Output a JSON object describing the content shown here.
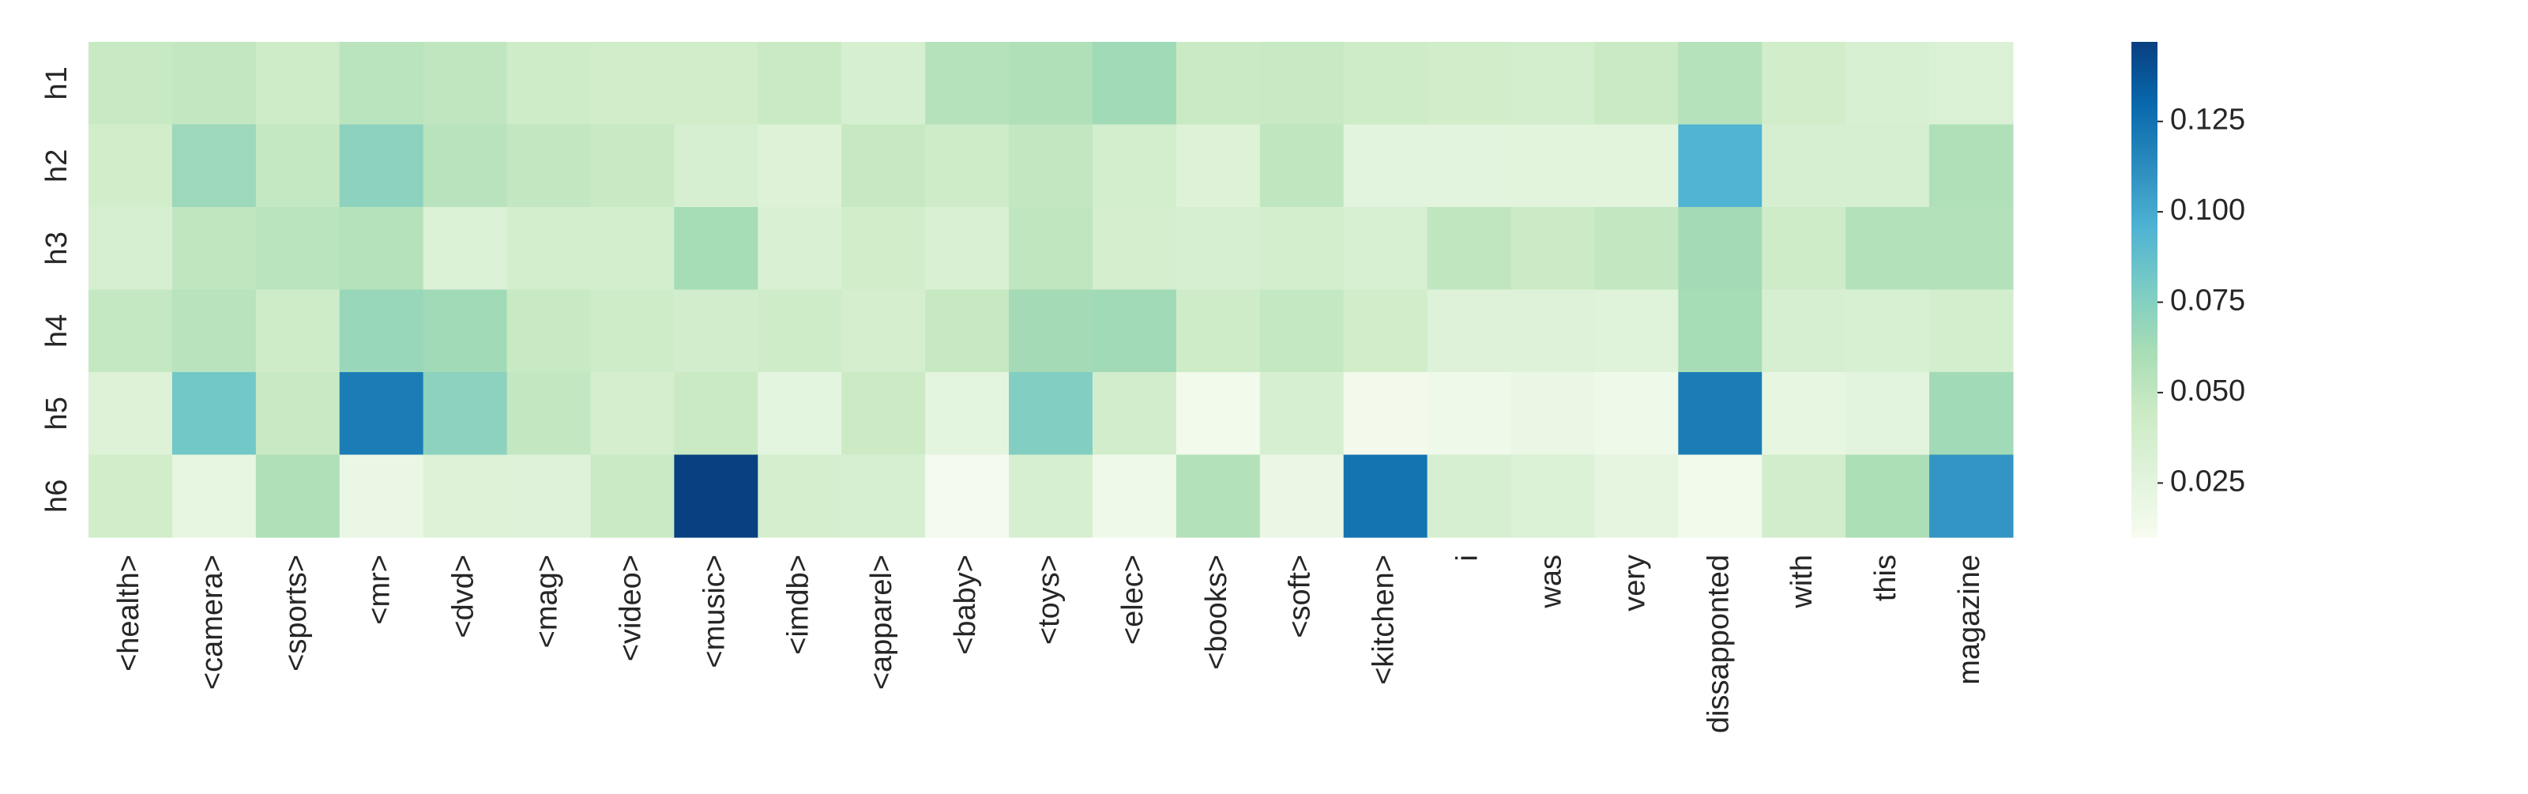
{
  "chart_data": {
    "type": "heatmap",
    "title": "",
    "xlabel": "",
    "ylabel": "",
    "x": [
      "<health>",
      "<camera>",
      "<sports>",
      "<mr>",
      "<dvd>",
      "<mag>",
      "<video>",
      "<music>",
      "<imdb>",
      "<apparel>",
      "<baby>",
      "<toys>",
      "<elec>",
      "<books>",
      "<soft>",
      "<kitchen>",
      "i",
      "was",
      "very",
      "dissapponted",
      "with",
      "this",
      "magazine"
    ],
    "y": [
      "h1",
      "h2",
      "h3",
      "h4",
      "h5",
      "h6"
    ],
    "values": [
      [
        0.046,
        0.049,
        0.042,
        0.053,
        0.05,
        0.042,
        0.04,
        0.04,
        0.045,
        0.036,
        0.055,
        0.058,
        0.064,
        0.045,
        0.046,
        0.042,
        0.04,
        0.038,
        0.045,
        0.055,
        0.04,
        0.034,
        0.032
      ],
      [
        0.04,
        0.066,
        0.048,
        0.072,
        0.054,
        0.049,
        0.046,
        0.036,
        0.03,
        0.047,
        0.043,
        0.049,
        0.038,
        0.03,
        0.05,
        0.025,
        0.025,
        0.026,
        0.026,
        0.095,
        0.035,
        0.036,
        0.058
      ],
      [
        0.036,
        0.05,
        0.053,
        0.055,
        0.031,
        0.038,
        0.038,
        0.062,
        0.033,
        0.04,
        0.033,
        0.05,
        0.037,
        0.035,
        0.038,
        0.034,
        0.05,
        0.044,
        0.049,
        0.063,
        0.042,
        0.056,
        0.056
      ],
      [
        0.048,
        0.054,
        0.042,
        0.067,
        0.064,
        0.046,
        0.043,
        0.039,
        0.042,
        0.037,
        0.047,
        0.063,
        0.064,
        0.043,
        0.048,
        0.04,
        0.029,
        0.029,
        0.028,
        0.062,
        0.036,
        0.034,
        0.038
      ],
      [
        0.03,
        0.082,
        0.046,
        0.12,
        0.072,
        0.049,
        0.037,
        0.045,
        0.024,
        0.044,
        0.024,
        0.076,
        0.039,
        0.014,
        0.035,
        0.013,
        0.016,
        0.019,
        0.016,
        0.12,
        0.022,
        0.025,
        0.064
      ],
      [
        0.04,
        0.022,
        0.058,
        0.02,
        0.03,
        0.029,
        0.045,
        0.147,
        0.037,
        0.036,
        0.012,
        0.036,
        0.016,
        0.056,
        0.019,
        0.124,
        0.036,
        0.032,
        0.023,
        0.014,
        0.039,
        0.059,
        0.109
      ]
    ],
    "colorbar": {
      "min": 0.01,
      "max": 0.147,
      "ticks": [
        0.025,
        0.05,
        0.075,
        0.1,
        0.125
      ],
      "tick_labels": [
        "0.025",
        "0.050",
        "0.075",
        "0.100",
        "0.125"
      ]
    },
    "colormap": "GnBu",
    "grid": false,
    "legend": "none"
  }
}
